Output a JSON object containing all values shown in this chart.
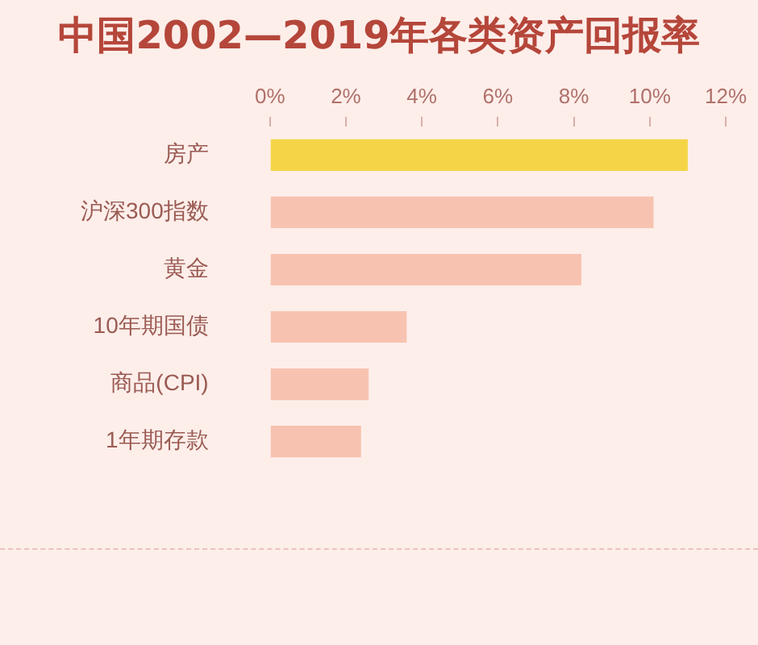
{
  "chart_data": {
    "type": "bar",
    "orientation": "horizontal",
    "title": "中国2002—2019年各类资产回报率",
    "categories": [
      "房产",
      "沪深300指数",
      "黄金",
      "10年期国债",
      "商品(CPI)",
      "1年期存款"
    ],
    "values": [
      11.0,
      10.1,
      8.2,
      3.6,
      2.6,
      2.4
    ],
    "colors": [
      "#f5d547",
      "#f7c3b0",
      "#f7c3b0",
      "#f7c3b0",
      "#f7c3b0",
      "#f7c3b0"
    ],
    "xlim": [
      0,
      12
    ],
    "xticks": [
      {
        "value": 0,
        "label": "0%"
      },
      {
        "value": 2,
        "label": "2%"
      },
      {
        "value": 4,
        "label": "4%"
      },
      {
        "value": 6,
        "label": "6%"
      },
      {
        "value": 8,
        "label": "8%"
      },
      {
        "value": 10,
        "label": "10%"
      },
      {
        "value": 12,
        "label": "12%"
      }
    ],
    "grid": false,
    "legend": false
  }
}
